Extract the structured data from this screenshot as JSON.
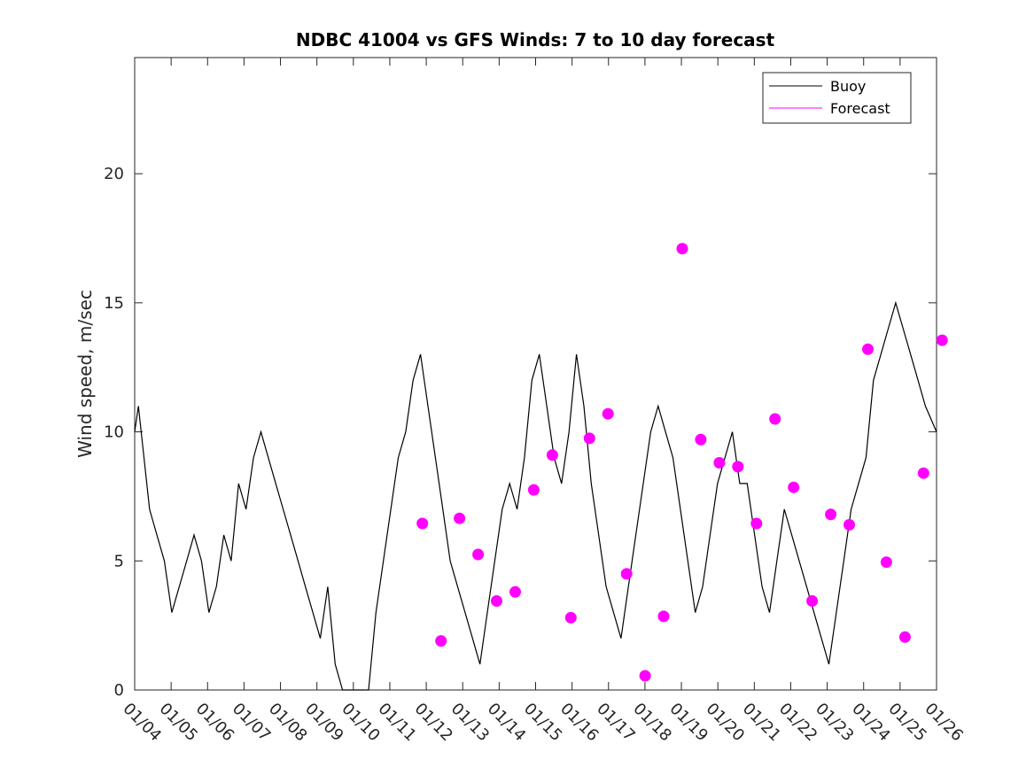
{
  "chart_data": {
    "type": "line",
    "title": "NDBC 41004 vs GFS Winds: 7 to 10 day forecast",
    "xlabel": "",
    "ylabel": "Wind speed, m/sec",
    "ylim": [
      0,
      24.5
    ],
    "xlim": [
      0,
      21.6
    ],
    "y_ticks": [
      0,
      5,
      10,
      15,
      20
    ],
    "x_tick_labels": [
      "01/04",
      "01/05",
      "01/06",
      "01/07",
      "01/08",
      "01/09",
      "01/10",
      "01/11",
      "01/12",
      "01/13",
      "01/14",
      "01/15",
      "01/16",
      "01/17",
      "01/18",
      "01/19",
      "01/20",
      "01/21",
      "01/22",
      "01/23",
      "01/24",
      "01/25",
      "01/26"
    ],
    "legend": {
      "placement": "top-right",
      "entries": [
        "Buoy",
        "Forecast"
      ]
    },
    "colors": {
      "buoy": "#000000",
      "forecast": "#ff00ff"
    },
    "series": [
      {
        "name": "Buoy",
        "x": [
          0,
          0.1,
          0.25,
          0.4,
          0.6,
          0.8,
          1.0,
          1.2,
          1.4,
          1.6,
          1.8,
          2.0,
          2.2,
          2.4,
          2.6,
          2.8,
          3.0,
          3.2,
          3.4,
          3.6,
          3.8,
          4.0,
          4.2,
          4.4,
          4.6,
          4.8,
          5.0,
          5.2,
          5.4,
          5.6,
          5.8,
          5.95,
          6.1,
          6.3,
          6.5,
          6.7,
          6.9,
          7.1,
          7.3,
          7.5,
          7.7,
          7.9,
          8.1,
          8.3,
          8.5,
          8.7,
          8.9,
          9.1,
          9.3,
          9.5,
          9.7,
          9.9,
          10.1,
          10.3,
          10.5,
          10.7,
          10.9,
          11.1,
          11.3,
          11.5,
          11.7,
          11.9,
          12.1,
          12.3,
          12.5,
          12.7,
          12.9,
          13.1,
          13.3,
          13.5,
          13.7,
          13.9,
          14.1,
          14.3,
          14.5,
          14.7,
          14.9,
          15.1,
          15.3,
          15.5,
          15.7,
          15.9,
          16.1,
          16.3,
          16.5,
          16.7,
          16.9,
          17.1,
          17.3,
          17.5,
          17.7,
          17.9,
          18.1,
          18.3,
          18.5,
          18.7,
          18.9,
          19.1,
          19.3,
          19.5,
          19.7,
          19.9,
          20.1,
          20.3,
          20.5,
          20.7,
          20.9,
          21.1,
          21.3,
          21.6
        ],
        "values": [
          10,
          11,
          9,
          7,
          6,
          5,
          3,
          4,
          5,
          6,
          5,
          3,
          4,
          6,
          5,
          8,
          7,
          9,
          10,
          9,
          8,
          7,
          6,
          5,
          4,
          3,
          2,
          4,
          1,
          0,
          0,
          0,
          0,
          0,
          3,
          5,
          7,
          9,
          10,
          12,
          13,
          11,
          9,
          7,
          5,
          4,
          3,
          2,
          1,
          3,
          5,
          7,
          8,
          7,
          9,
          12,
          13,
          11,
          9,
          8,
          10,
          13,
          11,
          8,
          6,
          4,
          3,
          2,
          4,
          6,
          8,
          10,
          11,
          10,
          9,
          7,
          5,
          3,
          4,
          6,
          8,
          9,
          10,
          8,
          8,
          6,
          4,
          3,
          5,
          7,
          6,
          5,
          4,
          3,
          2,
          1,
          3,
          5,
          7,
          8,
          9,
          12,
          13,
          14,
          15,
          14,
          13,
          12,
          11,
          10
        ]
      },
      {
        "name": "Forecast",
        "markers": [
          {
            "x": 7.75,
            "y": 6.45
          },
          {
            "x": 8.25,
            "y": 1.9
          },
          {
            "x": 8.75,
            "y": 6.65
          },
          {
            "x": 9.25,
            "y": 5.25
          },
          {
            "x": 9.75,
            "y": 3.45
          },
          {
            "x": 10.25,
            "y": 3.8
          },
          {
            "x": 10.75,
            "y": 7.75
          },
          {
            "x": 11.25,
            "y": 9.1
          },
          {
            "x": 11.75,
            "y": 2.8
          },
          {
            "x": 12.25,
            "y": 9.75
          },
          {
            "x": 12.75,
            "y": 10.7
          },
          {
            "x": 13.25,
            "y": 4.5
          },
          {
            "x": 13.75,
            "y": 0.55
          },
          {
            "x": 14.25,
            "y": 2.85
          },
          {
            "x": 14.75,
            "y": 17.1
          },
          {
            "x": 15.25,
            "y": 9.7
          },
          {
            "x": 15.75,
            "y": 8.8
          },
          {
            "x": 16.25,
            "y": 8.65
          },
          {
            "x": 16.75,
            "y": 6.45
          },
          {
            "x": 17.25,
            "y": 10.5
          },
          {
            "x": 17.75,
            "y": 7.85
          },
          {
            "x": 18.25,
            "y": 3.45
          },
          {
            "x": 18.75,
            "y": 6.8
          },
          {
            "x": 19.25,
            "y": 6.4
          },
          {
            "x": 19.75,
            "y": 13.2
          },
          {
            "x": 20.25,
            "y": 4.95
          },
          {
            "x": 20.75,
            "y": 2.05
          },
          {
            "x": 21.25,
            "y": 8.4
          },
          {
            "x": 21.75,
            "y": 13.55
          }
        ]
      }
    ]
  }
}
